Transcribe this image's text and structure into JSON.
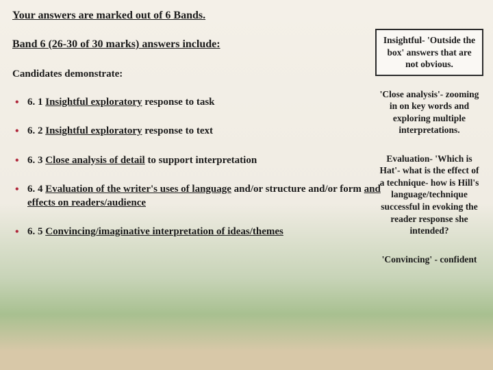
{
  "title": "Your answers are marked out of 6 Bands.",
  "subtitle": "Band 6 (26-30 of 30 marks) answers include:",
  "candidates": "Candidates demonstrate:",
  "bullets": [
    {
      "num": "6. 1",
      "u1": "Insightful exploratory",
      "rest": " response to task"
    },
    {
      "num": "6. 2",
      "u1": "Insightful exploratory",
      "rest": " response to text"
    },
    {
      "num": "6. 3",
      "u1": "Close analysis of detail",
      "rest": " to support interpretation"
    },
    {
      "num": "6. 4",
      "u1": "Evaluation of the writer's uses of language",
      "rest": " and/or structure and/or form ",
      "u2": "and effects on readers/audience"
    },
    {
      "num": "6. 5",
      "u1": "Convincing/imaginative interpretation of ideas/themes",
      "rest": ""
    }
  ],
  "callouts": [
    {
      "lead": "Insightful-",
      "body": " 'Outside the box' answers that are not obvious.",
      "border": true
    },
    {
      "lead": "'Close analysis'-",
      "body": " zooming in on key words and exploring multiple interpretations.",
      "border": false
    },
    {
      "lead": "Evaluation-",
      "body": " 'Which is Hat'- what is the effect of a technique- how is Hill's language/technique successful in evoking the reader response she intended?",
      "border": false
    },
    {
      "lead": "'Convincing' -",
      "body": " confident",
      "border": false
    }
  ],
  "colors": {
    "bullet_marker": "#b0283c",
    "text": "#1a1a1a",
    "callout_border": "#2a2a2a"
  },
  "fontsize": {
    "title": 16,
    "body": 15,
    "callout": 13.5
  }
}
